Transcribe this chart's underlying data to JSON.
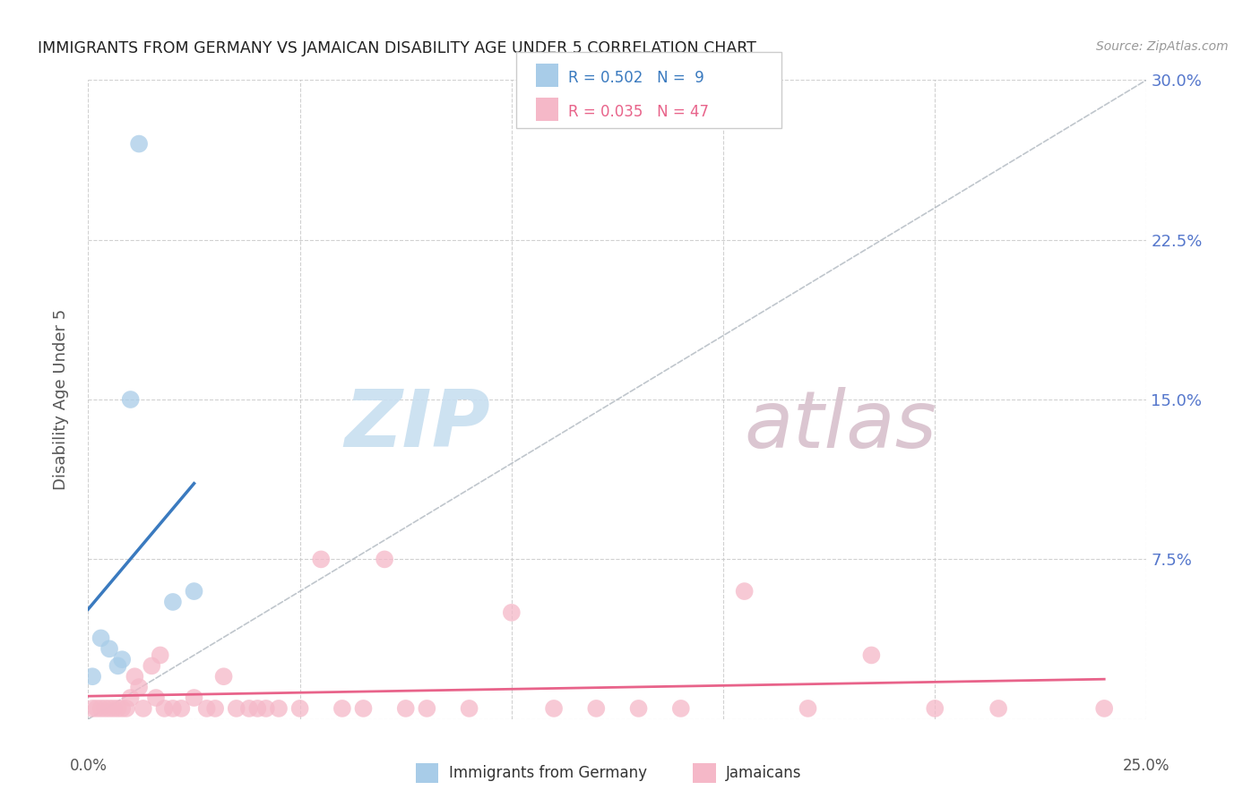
{
  "title": "IMMIGRANTS FROM GERMANY VS JAMAICAN DISABILITY AGE UNDER 5 CORRELATION CHART",
  "source": "Source: ZipAtlas.com",
  "ylabel": "Disability Age Under 5",
  "xlim": [
    0.0,
    0.25
  ],
  "ylim": [
    0.0,
    0.3
  ],
  "x_ticks": [
    0.0,
    0.05,
    0.1,
    0.15,
    0.2,
    0.25
  ],
  "y_ticks": [
    0.0,
    0.075,
    0.15,
    0.225,
    0.3
  ],
  "legend_germany_label": "Immigrants from Germany",
  "legend_jamaicans_label": "Jamaicans",
  "R_germany": 0.502,
  "N_germany": 9,
  "R_jamaicans": 0.035,
  "N_jamaicans": 47,
  "color_germany": "#a8cce8",
  "color_jamaicans": "#f5b8c8",
  "color_germany_line": "#3a7abf",
  "color_jamaicans_line": "#e8638a",
  "color_right_labels": "#5577cc",
  "color_source": "#999999",
  "background_color": "#ffffff",
  "germany_x": [
    0.001,
    0.003,
    0.005,
    0.007,
    0.008,
    0.01,
    0.012,
    0.02,
    0.025
  ],
  "germany_y": [
    0.02,
    0.038,
    0.033,
    0.025,
    0.028,
    0.15,
    0.27,
    0.055,
    0.06
  ],
  "jamaicans_x": [
    0.001,
    0.002,
    0.003,
    0.004,
    0.005,
    0.006,
    0.007,
    0.008,
    0.009,
    0.01,
    0.011,
    0.012,
    0.013,
    0.015,
    0.016,
    0.017,
    0.018,
    0.02,
    0.022,
    0.025,
    0.028,
    0.03,
    0.032,
    0.035,
    0.038,
    0.04,
    0.042,
    0.045,
    0.05,
    0.055,
    0.06,
    0.065,
    0.07,
    0.075,
    0.08,
    0.09,
    0.1,
    0.11,
    0.12,
    0.13,
    0.14,
    0.155,
    0.17,
    0.185,
    0.2,
    0.215,
    0.24
  ],
  "jamaicans_y": [
    0.005,
    0.005,
    0.005,
    0.005,
    0.005,
    0.005,
    0.005,
    0.005,
    0.005,
    0.01,
    0.02,
    0.015,
    0.005,
    0.025,
    0.01,
    0.03,
    0.005,
    0.005,
    0.005,
    0.01,
    0.005,
    0.005,
    0.02,
    0.005,
    0.005,
    0.005,
    0.005,
    0.005,
    0.005,
    0.075,
    0.005,
    0.005,
    0.075,
    0.005,
    0.005,
    0.005,
    0.05,
    0.005,
    0.005,
    0.005,
    0.005,
    0.06,
    0.005,
    0.03,
    0.005,
    0.005,
    0.005
  ],
  "watermark_zip_color": "#c8dff0",
  "watermark_atlas_color": "#d8c0cc"
}
